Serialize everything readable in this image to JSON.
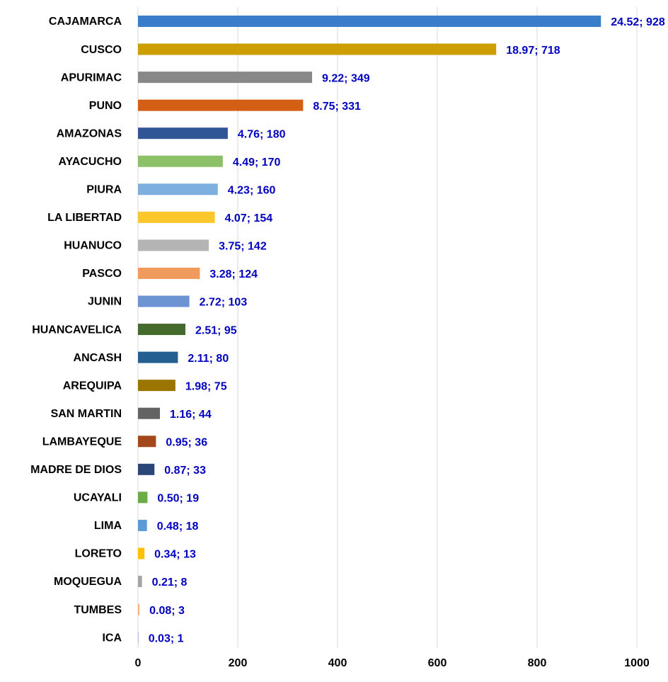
{
  "chart_data": {
    "type": "hbar",
    "categories": [
      "CAJAMARCA",
      "CUSCO",
      "APURIMAC",
      "PUNO",
      "AMAZONAS",
      "AYACUCHO",
      "PIURA",
      "LA LIBERTAD",
      "HUANUCO",
      "PASCO",
      "JUNIN",
      "HUANCAVELICA",
      "ANCASH",
      "AREQUIPA",
      "SAN MARTIN",
      "LAMBAYEQUE",
      "MADRE DE DIOS",
      "UCAYALI",
      "LIMA",
      "LORETO",
      "MOQUEGUA",
      "TUMBES",
      "ICA"
    ],
    "values": [
      928,
      718,
      349,
      331,
      180,
      170,
      160,
      154,
      142,
      124,
      103,
      95,
      80,
      75,
      44,
      36,
      33,
      19,
      18,
      13,
      8,
      3,
      1
    ],
    "value_labels": [
      "24.52; 928",
      "18.97; 718",
      "9.22; 349",
      "8.75; 331",
      "4.76; 180",
      "4.49; 170",
      "4.23; 160",
      "4.07; 154",
      "3.75; 142",
      "3.28; 124",
      "2.72; 103",
      "2.51; 95",
      "2.11; 80",
      "1.98; 75",
      "1.16; 44",
      "0.95; 36",
      "0.87; 33",
      "0.50; 19",
      "0.48; 18",
      "0.34; 13",
      "0.21; 8",
      "0.08; 3",
      "0.03; 1"
    ],
    "colors": [
      "#3a7dc9",
      "#cc9e00",
      "#888888",
      "#d35f14",
      "#2f5597",
      "#8cc168",
      "#7eb0df",
      "#fcc72c",
      "#b4b4b4",
      "#f19a5e",
      "#6c93d2",
      "#446b2b",
      "#255e91",
      "#9a7500",
      "#636363",
      "#a2481a",
      "#2a4679",
      "#6aac46",
      "#5b9bd5",
      "#ffc000",
      "#a5a5a5",
      "#f4b183",
      "#8faadc"
    ],
    "xlim": [
      0,
      1000
    ],
    "xticks": [
      0,
      200,
      400,
      600,
      800,
      1000
    ],
    "grid": true
  }
}
